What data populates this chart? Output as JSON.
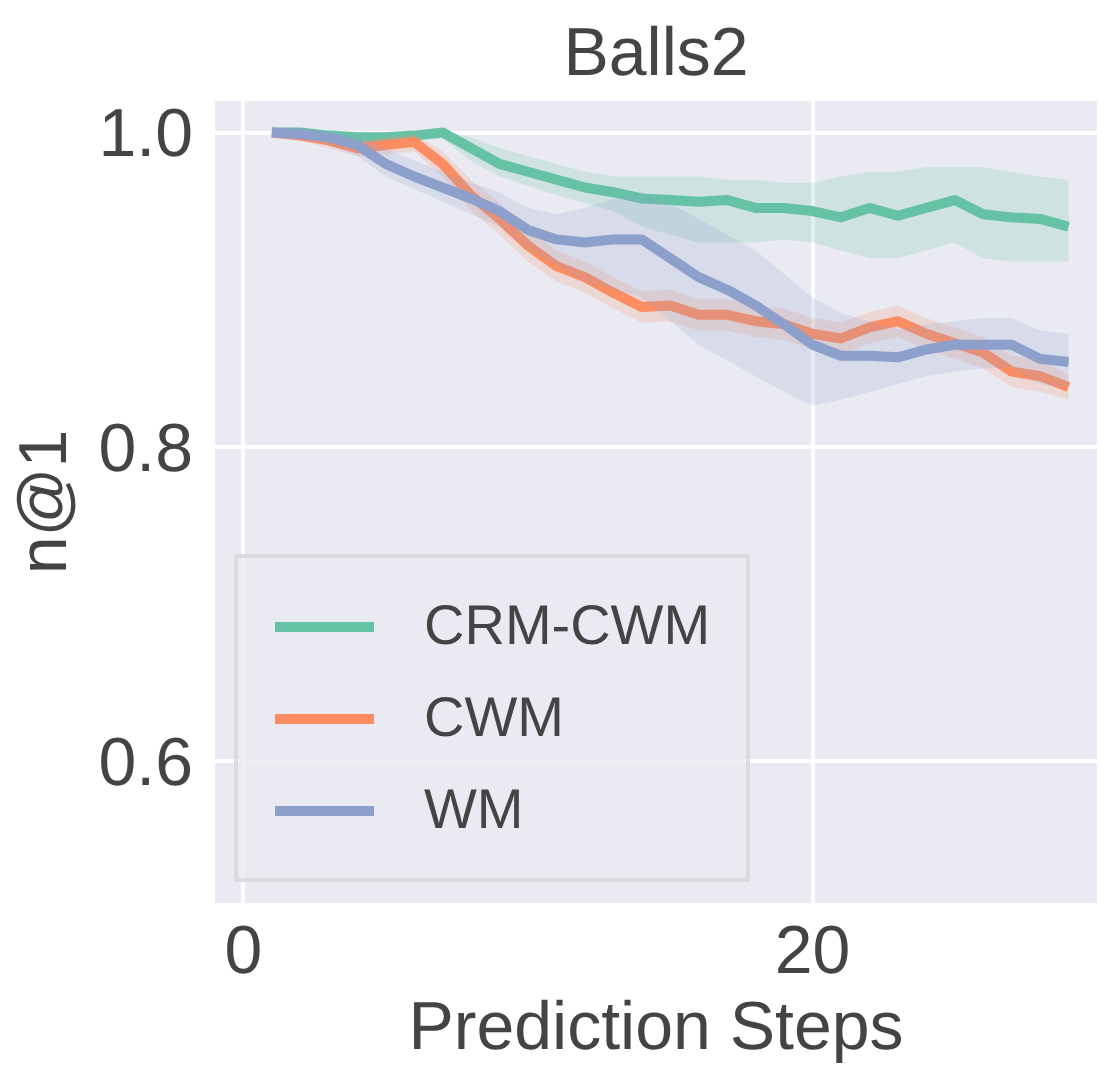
{
  "chart_data": {
    "type": "line",
    "title": "Balls2",
    "xlabel": "Prediction Steps",
    "ylabel": "n@1",
    "x": [
      1,
      2,
      3,
      4,
      5,
      6,
      7,
      8,
      9,
      10,
      11,
      12,
      13,
      14,
      15,
      16,
      17,
      18,
      19,
      20,
      21,
      22,
      23,
      24,
      25,
      26,
      27,
      28,
      29
    ],
    "series": [
      {
        "name": "CRM-CWM",
        "color": "#66c2a5",
        "values": [
          1.0,
          1.0,
          0.998,
          0.997,
          0.997,
          0.998,
          1.0,
          0.99,
          0.98,
          0.975,
          0.97,
          0.965,
          0.962,
          0.958,
          0.957,
          0.956,
          0.957,
          0.952,
          0.952,
          0.95,
          0.946,
          0.952,
          0.947,
          0.952,
          0.957,
          0.948,
          0.946,
          0.945,
          0.94
        ],
        "lower": [
          0.997,
          0.997,
          0.995,
          0.994,
          0.994,
          0.995,
          0.996,
          0.982,
          0.972,
          0.966,
          0.96,
          0.955,
          0.95,
          0.94,
          0.935,
          0.93,
          0.93,
          0.93,
          0.932,
          0.93,
          0.925,
          0.92,
          0.92,
          0.925,
          0.93,
          0.92,
          0.918,
          0.918,
          0.918
        ],
        "upper": [
          1.0,
          1.0,
          1.0,
          1.0,
          1.0,
          1.0,
          1.0,
          0.997,
          0.99,
          0.985,
          0.98,
          0.975,
          0.972,
          0.972,
          0.972,
          0.972,
          0.97,
          0.97,
          0.968,
          0.968,
          0.972,
          0.975,
          0.975,
          0.978,
          0.978,
          0.978,
          0.975,
          0.972,
          0.97
        ]
      },
      {
        "name": "CWM",
        "color": "#fc8d62",
        "values": [
          1.0,
          0.998,
          0.995,
          0.99,
          0.992,
          0.994,
          0.98,
          0.96,
          0.945,
          0.928,
          0.915,
          0.908,
          0.898,
          0.889,
          0.89,
          0.884,
          0.884,
          0.88,
          0.878,
          0.872,
          0.869,
          0.876,
          0.88,
          0.872,
          0.866,
          0.86,
          0.848,
          0.845,
          0.838
        ],
        "lower": [
          0.998,
          0.995,
          0.99,
          0.985,
          0.986,
          0.988,
          0.972,
          0.95,
          0.935,
          0.918,
          0.905,
          0.898,
          0.888,
          0.879,
          0.88,
          0.874,
          0.874,
          0.87,
          0.868,
          0.862,
          0.859,
          0.866,
          0.87,
          0.862,
          0.856,
          0.85,
          0.838,
          0.835,
          0.83
        ],
        "upper": [
          1.0,
          1.0,
          0.999,
          0.995,
          0.997,
          0.999,
          0.988,
          0.97,
          0.955,
          0.938,
          0.925,
          0.918,
          0.908,
          0.899,
          0.9,
          0.894,
          0.894,
          0.89,
          0.888,
          0.882,
          0.879,
          0.886,
          0.89,
          0.882,
          0.876,
          0.87,
          0.858,
          0.855,
          0.846
        ]
      },
      {
        "name": "WM",
        "color": "#8da0cb",
        "values": [
          1.0,
          0.999,
          0.997,
          0.992,
          0.98,
          0.972,
          0.965,
          0.958,
          0.95,
          0.938,
          0.932,
          0.93,
          0.932,
          0.932,
          0.92,
          0.908,
          0.9,
          0.89,
          0.878,
          0.865,
          0.858,
          0.858,
          0.857,
          0.862,
          0.865,
          0.865,
          0.865,
          0.856,
          0.854
        ],
        "lower": [
          0.998,
          0.996,
          0.992,
          0.985,
          0.972,
          0.964,
          0.956,
          0.948,
          0.94,
          0.926,
          0.915,
          0.905,
          0.9,
          0.895,
          0.88,
          0.865,
          0.855,
          0.845,
          0.835,
          0.826,
          0.83,
          0.835,
          0.84,
          0.845,
          0.848,
          0.85,
          0.85,
          0.84,
          0.838
        ],
        "upper": [
          1.0,
          1.0,
          1.0,
          0.998,
          0.99,
          0.982,
          0.975,
          0.968,
          0.962,
          0.952,
          0.948,
          0.952,
          0.958,
          0.962,
          0.955,
          0.945,
          0.935,
          0.925,
          0.91,
          0.895,
          0.885,
          0.88,
          0.875,
          0.878,
          0.88,
          0.882,
          0.882,
          0.874,
          0.872
        ]
      }
    ],
    "xlim": [
      -1,
      30
    ],
    "xticks": [
      0,
      20
    ],
    "ylim": [
      0.51,
      1.02
    ],
    "yticks": [
      {
        "value": 0.6,
        "label": "0.6"
      },
      {
        "value": 0.8,
        "label": "0.8"
      },
      {
        "value": 1.0,
        "label": "1.0"
      }
    ],
    "grid": true,
    "legend": "bottom left",
    "marker": "none",
    "line_style": "solid"
  }
}
